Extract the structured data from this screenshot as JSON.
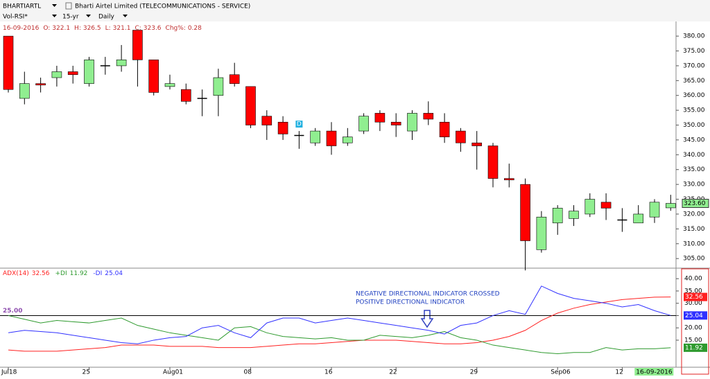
{
  "toolbar": {
    "symbol": "BHARTIARTL",
    "company": "Bharti Airtel Limited (TELECOMMUNICATIONS - SERVICE)",
    "study": "Vol-RSI*",
    "period": "15-yr",
    "interval": "Daily"
  },
  "info": {
    "labels": [
      "O:",
      "H:",
      "L:",
      "C:",
      "Chg%:"
    ],
    "change_pct": 0.28
  },
  "chart_data": [
    {
      "type": "candlestick",
      "up_color": "#90ee90",
      "down_color": "#ff0000",
      "open": [
        380,
        359,
        364,
        366,
        368,
        364,
        370,
        370,
        382,
        372,
        363,
        362,
        359,
        360,
        367,
        363,
        353,
        351,
        346.5,
        344,
        348,
        344,
        348,
        354,
        351,
        348,
        354,
        351,
        348,
        344,
        343,
        332,
        330,
        308,
        317,
        318.5,
        320,
        324,
        318,
        317,
        319,
        322.1
      ],
      "high": [
        380,
        368,
        366,
        370,
        370,
        373,
        373,
        377,
        382,
        372,
        367,
        364,
        362,
        369,
        371,
        363,
        355,
        353,
        348,
        349,
        351,
        349,
        354,
        355,
        354,
        355,
        358,
        354,
        349,
        348,
        344,
        337,
        332,
        321,
        323,
        323,
        327,
        327,
        322,
        323,
        325,
        326.5
      ],
      "low": [
        361,
        357,
        361,
        363,
        364,
        363,
        367,
        368,
        363,
        360,
        362,
        357,
        353,
        353,
        363,
        349,
        345,
        345,
        342,
        343,
        340,
        343,
        347,
        348,
        346,
        345,
        350,
        344,
        341,
        335,
        329,
        329,
        301,
        307,
        313,
        316,
        319,
        318,
        314,
        317,
        317,
        321.1
      ],
      "close": [
        362,
        364,
        363.5,
        368,
        367,
        372,
        370,
        372,
        372,
        361,
        364,
        358,
        359,
        366,
        364,
        350,
        350,
        347,
        346.5,
        348,
        343,
        346,
        353,
        351,
        350,
        354,
        352,
        346,
        344,
        343,
        332,
        331.5,
        311,
        319,
        322,
        321,
        325,
        322,
        318,
        320,
        324,
        323.6
      ],
      "last_close_label": "323.60",
      "ylim": [
        302,
        384
      ],
      "yticks": [
        {
          "value": 305,
          "label": "305.00"
        },
        {
          "value": 310,
          "label": "310.00"
        },
        {
          "value": 315,
          "label": "315.00"
        },
        {
          "value": 320,
          "label": "320.00"
        },
        {
          "value": 325,
          "label": "325.00"
        },
        {
          "value": 330,
          "label": "330.00"
        },
        {
          "value": 335,
          "label": "335.00"
        },
        {
          "value": 340,
          "label": "340.00"
        },
        {
          "value": 345,
          "label": "345.00"
        },
        {
          "value": 350,
          "label": "350.00"
        },
        {
          "value": 355,
          "label": "355.00"
        },
        {
          "value": 360,
          "label": "360.00"
        },
        {
          "value": 365,
          "label": "365.00"
        },
        {
          "value": 370,
          "label": "370.00"
        },
        {
          "value": 375,
          "label": "375.00"
        },
        {
          "value": 380,
          "label": "380.00"
        }
      ],
      "marker": {
        "index": 18,
        "label": "D"
      }
    },
    {
      "type": "line",
      "categories": [
        "Jul18",
        null,
        null,
        null,
        null,
        "25",
        null,
        null,
        null,
        null,
        "Aug01",
        null,
        null,
        null,
        null,
        "08",
        null,
        null,
        null,
        null,
        "16",
        null,
        null,
        null,
        "22",
        null,
        null,
        null,
        null,
        "29",
        null,
        null,
        null,
        null,
        "Sep06",
        null,
        null,
        null,
        "12",
        null,
        null,
        "16-09-2016"
      ],
      "series": [
        {
          "name": "ADX(14)",
          "color": "#ff2020",
          "last_label": "32.56",
          "values": [
            11,
            10.5,
            10.5,
            10.5,
            11,
            11.5,
            12,
            13,
            13,
            13,
            12.5,
            12.5,
            12.5,
            12,
            12,
            12,
            12.5,
            13,
            13.5,
            13.5,
            14,
            14.5,
            15,
            15,
            15,
            14.5,
            14,
            13.5,
            13.5,
            14,
            15,
            16.5,
            19,
            23,
            26,
            28,
            29.5,
            30.5,
            31.5,
            32,
            32.5,
            32.56
          ]
        },
        {
          "name": "+DI",
          "color": "#2e9a2e",
          "last_label": "11.92",
          "values": [
            25,
            23.5,
            22,
            23,
            22.5,
            22,
            23,
            24,
            21,
            19.5,
            18,
            17,
            16,
            15,
            20,
            20.5,
            18,
            16.5,
            16,
            15.5,
            16,
            15,
            15,
            17,
            16.5,
            16,
            17,
            18.5,
            16,
            15,
            13,
            12,
            11,
            10,
            9.5,
            10,
            10,
            12,
            11,
            11.5,
            11.5,
            11.92
          ]
        },
        {
          "name": "-DI",
          "color": "#3030ff",
          "last_label": "25.04",
          "values": [
            18,
            19,
            18.5,
            18,
            17,
            16,
            15,
            14,
            13.5,
            15,
            16,
            16.5,
            20,
            21,
            18,
            16,
            22,
            24,
            24,
            22,
            23,
            24,
            23,
            22,
            21,
            20,
            19,
            17.5,
            21,
            22,
            25,
            27,
            25.5,
            37,
            34,
            32,
            31,
            30,
            28.5,
            29.5,
            27,
            25.04
          ]
        }
      ],
      "ref_line": {
        "value": 25,
        "label": "25.00"
      },
      "annotation": [
        "NEGATIVE DIRECTIONAL INDICATOR CROSSED",
        "POSITIVE DIRECTIONAL INDICATOR"
      ],
      "ylim": [
        4,
        44
      ],
      "yticks": [
        {
          "value": 15,
          "label": "15.00"
        },
        {
          "value": 20,
          "label": "20.00"
        },
        {
          "value": 25,
          "label": "25.00"
        },
        {
          "value": 30,
          "label": "30.00"
        },
        {
          "value": 35,
          "label": "35.00"
        },
        {
          "value": 40,
          "label": "40.00"
        }
      ]
    }
  ]
}
